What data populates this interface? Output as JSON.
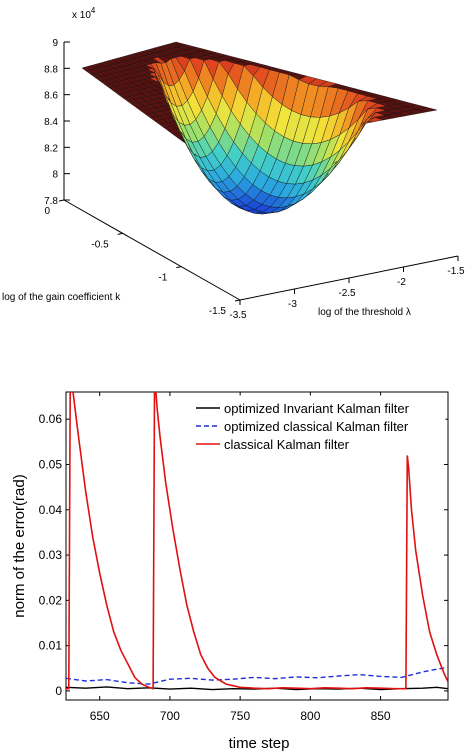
{
  "chart_data": [
    {
      "type": "surface",
      "exponent_label": "x 10",
      "exponent_power": "4",
      "z_ticks": [
        "9",
        "8.8",
        "8.6",
        "8.4",
        "8.2",
        "8",
        "7.8"
      ],
      "z_values": [
        9,
        8.8,
        8.6,
        8.4,
        8.2,
        8.0,
        7.8
      ],
      "zlim": [
        7.8,
        9.0
      ],
      "xlabel": "log of the gain coefficient k",
      "x_ticks": [
        "0",
        "-0.5",
        "-1",
        "-1.5"
      ],
      "xlim": [
        -1.5,
        0
      ],
      "ylabel": "log of the threshold λ",
      "y_ticks": [
        "-3.5",
        "-3",
        "-2.5",
        "-2",
        "-1.5"
      ],
      "ylim": [
        -3.5,
        -1.5
      ],
      "colormap": [
        "#1a3fd6",
        "#2aa8e0",
        "#43d0c8",
        "#9ee06a",
        "#f2e43a",
        "#f5a623",
        "#e0421f",
        "#7a1210"
      ],
      "surface_min": 7.8,
      "surface_plateau": 8.7
    },
    {
      "type": "line",
      "xlabel": "time step",
      "ylabel": "norm of the error(rad)",
      "x_ticks": [
        "650",
        "700",
        "750",
        "800",
        "850"
      ],
      "x_tick_values": [
        650,
        700,
        750,
        800,
        850
      ],
      "xlim": [
        626,
        898
      ],
      "y_ticks": [
        "0",
        "0.01",
        "0.02",
        "0.03",
        "0.04",
        "0.05",
        "0.06"
      ],
      "y_tick_values": [
        0,
        0.01,
        0.02,
        0.03,
        0.04,
        0.05,
        0.06
      ],
      "ylim": [
        -0.002,
        0.066
      ],
      "legend_position": "top-right",
      "series": [
        {
          "name": "optimized Invariant Kalman filter",
          "color": "#000000",
          "style": "solid",
          "x": [
            626,
            640,
            655,
            670,
            685,
            700,
            715,
            730,
            745,
            760,
            775,
            790,
            805,
            820,
            835,
            850,
            865,
            880,
            890,
            898
          ],
          "y": [
            0.0008,
            0.0006,
            0.0009,
            0.0005,
            0.0007,
            0.0004,
            0.0006,
            0.0003,
            0.0005,
            0.0004,
            0.0006,
            0.0003,
            0.0005,
            0.0004,
            0.0006,
            0.0003,
            0.0005,
            0.0006,
            0.0008,
            0.0005
          ]
        },
        {
          "name": "optimized classical Kalman filter",
          "color": "#1f2fd6",
          "style": "dashed",
          "x": [
            626,
            640,
            655,
            670,
            685,
            700,
            715,
            730,
            745,
            760,
            775,
            790,
            805,
            820,
            835,
            850,
            865,
            880,
            890,
            898
          ],
          "y": [
            0.0028,
            0.0022,
            0.0025,
            0.0018,
            0.0015,
            0.0026,
            0.0028,
            0.0024,
            0.0026,
            0.003,
            0.0027,
            0.0031,
            0.0029,
            0.0033,
            0.0036,
            0.0032,
            0.003,
            0.0042,
            0.0048,
            0.0052
          ]
        },
        {
          "name": "classical Kalman filter",
          "color": "#e01010",
          "style": "solid",
          "x": [
            626,
            628,
            629,
            631,
            635,
            640,
            645,
            650,
            655,
            660,
            665,
            670,
            675,
            680,
            685,
            688,
            689,
            690,
            691,
            693,
            697,
            702,
            707,
            712,
            717,
            722,
            727,
            732,
            740,
            750,
            760,
            770,
            780,
            790,
            800,
            810,
            820,
            830,
            840,
            850,
            860,
            867,
            868,
            869,
            870,
            872,
            875,
            880,
            885,
            890,
            895,
            898
          ],
          "y": [
            0.0005,
            0.0005,
            0.066,
            0.066,
            0.056,
            0.044,
            0.034,
            0.026,
            0.019,
            0.013,
            0.009,
            0.006,
            0.003,
            0.0015,
            0.0008,
            0.0005,
            0.066,
            0.066,
            0.062,
            0.056,
            0.046,
            0.036,
            0.027,
            0.019,
            0.013,
            0.008,
            0.005,
            0.003,
            0.0015,
            0.0008,
            0.0006,
            0.0005,
            0.0007,
            0.0006,
            0.0005,
            0.0007,
            0.0006,
            0.0005,
            0.0007,
            0.0006,
            0.0005,
            0.0005,
            0.0005,
            0.052,
            0.049,
            0.04,
            0.031,
            0.021,
            0.013,
            0.008,
            0.004,
            0.002
          ]
        }
      ]
    }
  ]
}
